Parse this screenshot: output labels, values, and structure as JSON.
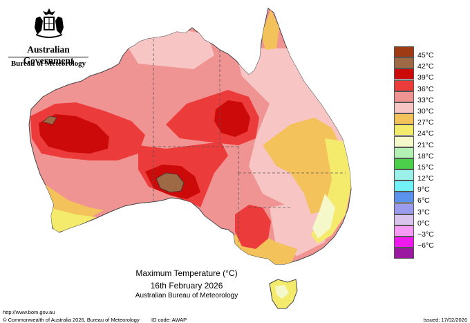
{
  "header": {
    "government": "Australian Government",
    "bureau": "Bureau of Meteorology"
  },
  "map": {
    "title": "Maximum Temperature (°C)",
    "date": "16th February 2026",
    "credit": "Australian Bureau of Meteorology",
    "regions": [
      "mainland-australia",
      "tasmania",
      "wa-north-heat-core",
      "sa-heat-core",
      "nt-qld-heat-core",
      "east-coast-cool-band"
    ]
  },
  "legend": {
    "items": [
      {
        "label": "45°C",
        "color": "#9e3b14"
      },
      {
        "label": "42°C",
        "color": "#9e6a46"
      },
      {
        "label": "39°C",
        "color": "#cc0a0a"
      },
      {
        "label": "36°C",
        "color": "#ec3b3b"
      },
      {
        "label": "33°C",
        "color": "#f09393"
      },
      {
        "label": "30°C",
        "color": "#f8c5c5"
      },
      {
        "label": "27°C",
        "color": "#f3c25a"
      },
      {
        "label": "24°C",
        "color": "#f4ea6c"
      },
      {
        "label": "21°C",
        "color": "#f5f8c8"
      },
      {
        "label": "18°C",
        "color": "#b2f0b4"
      },
      {
        "label": "15°C",
        "color": "#4cd04c"
      },
      {
        "label": "12°C",
        "color": "#9bf1ea"
      },
      {
        "label": "9°C",
        "color": "#72f2f7"
      },
      {
        "label": "6°C",
        "color": "#5b92ee"
      },
      {
        "label": "3°C",
        "color": "#9c9cee"
      },
      {
        "label": "0°C",
        "color": "#d8c4ec"
      },
      {
        "label": "−3°C",
        "color": "#f59af5"
      },
      {
        "label": "−6°C",
        "color": "#ee1aee"
      },
      {
        "label": "",
        "color": "#9a19a0"
      }
    ]
  },
  "footer": {
    "url": "http://www.bom.gov.au",
    "copyright": "© Commonwealth of Australia 2026, Bureau of Meteorology",
    "id_code": "ID code: AWAP",
    "issued": "Issued: 17/02/2026"
  }
}
